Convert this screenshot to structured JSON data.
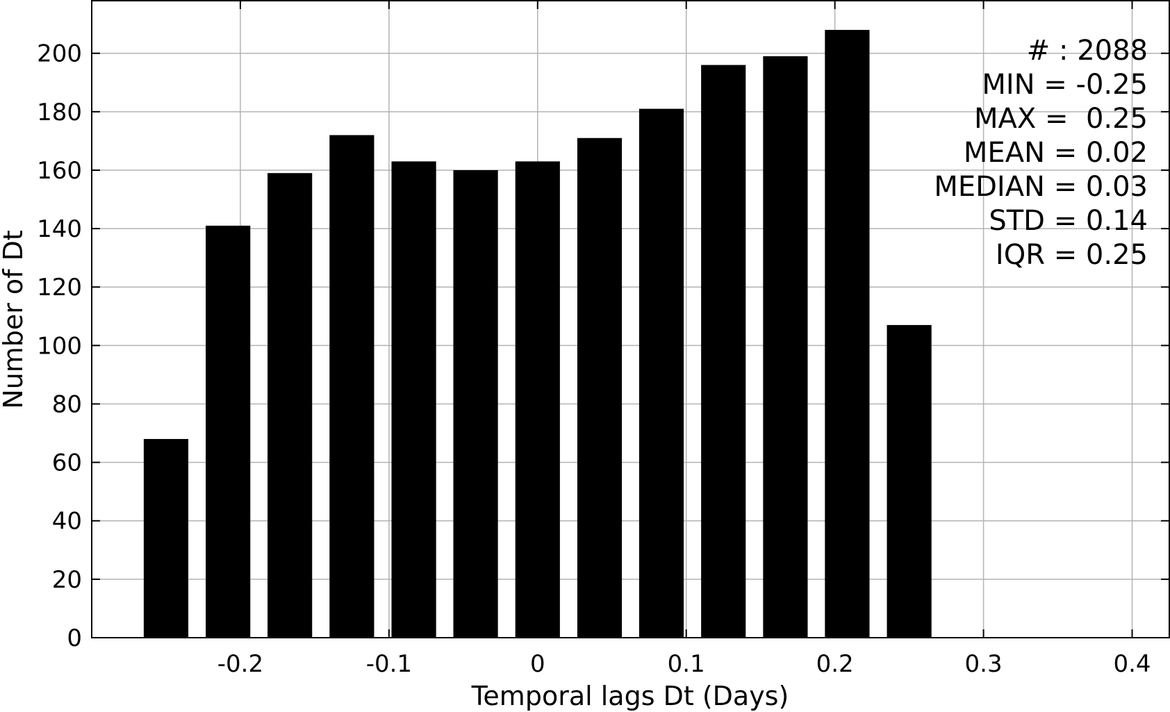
{
  "chart_data": {
    "type": "bar",
    "xlabel": "Temporal lags Dt (Days)",
    "ylabel": "Number of Dt",
    "xlim": [
      -0.3,
      0.425
    ],
    "ylim": [
      0,
      218
    ],
    "grid": true,
    "x_ticks": [
      {
        "value": -0.2,
        "label": "-0.2"
      },
      {
        "value": -0.1,
        "label": "-0.1"
      },
      {
        "value": 0,
        "label": "0"
      },
      {
        "value": 0.1,
        "label": "0.1"
      },
      {
        "value": 0.2,
        "label": "0.2"
      },
      {
        "value": 0.3,
        "label": "0.3"
      },
      {
        "value": 0.4,
        "label": "0.4"
      }
    ],
    "y_ticks": [
      {
        "value": 0,
        "label": "0"
      },
      {
        "value": 20,
        "label": "20"
      },
      {
        "value": 40,
        "label": "40"
      },
      {
        "value": 60,
        "label": "60"
      },
      {
        "value": 80,
        "label": "80"
      },
      {
        "value": 100,
        "label": "100"
      },
      {
        "value": 120,
        "label": "120"
      },
      {
        "value": 140,
        "label": "140"
      },
      {
        "value": 160,
        "label": "160"
      },
      {
        "value": 180,
        "label": "180"
      },
      {
        "value": 200,
        "label": "200"
      }
    ],
    "bar_width": 0.03,
    "bars": [
      {
        "x": -0.25,
        "value": 68
      },
      {
        "x": -0.2083,
        "value": 141
      },
      {
        "x": -0.1667,
        "value": 159
      },
      {
        "x": -0.125,
        "value": 172
      },
      {
        "x": -0.0833,
        "value": 163
      },
      {
        "x": -0.0417,
        "value": 160
      },
      {
        "x": 0.0,
        "value": 163
      },
      {
        "x": 0.0417,
        "value": 171
      },
      {
        "x": 0.0833,
        "value": 181
      },
      {
        "x": 0.125,
        "value": 196
      },
      {
        "x": 0.1667,
        "value": 199
      },
      {
        "x": 0.2083,
        "value": 208
      },
      {
        "x": 0.25,
        "value": 107
      }
    ],
    "annotation_position": "top-right",
    "annotations": [
      "# : 2088",
      "MIN = -0.25",
      "MAX =  0.25",
      "MEAN = 0.02",
      "MEDIAN = 0.03",
      "STD = 0.14",
      "IQR = 0.25"
    ],
    "bar_color": "#000000",
    "grid_color": "#b3b3b3"
  }
}
